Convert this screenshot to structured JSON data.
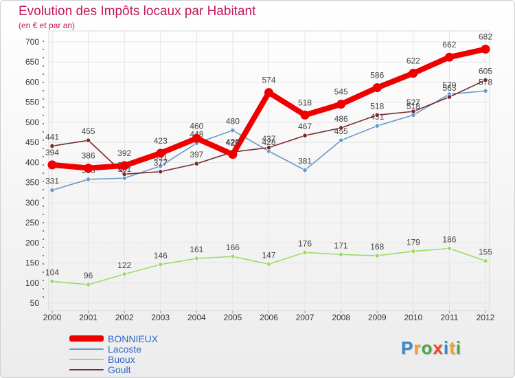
{
  "header": {
    "title": "Evolution des Impôts locaux par Habitant",
    "subtitle": "(en € et par an)"
  },
  "chart_data": {
    "type": "line",
    "title": "Evolution des Impôts locaux par Habitant",
    "subtitle": "(en € et par an)",
    "xlabel": "",
    "ylabel": "",
    "x": [
      "2000",
      "2001",
      "2002",
      "2003",
      "2004",
      "2005",
      "2006",
      "2007",
      "2008",
      "2009",
      "2010",
      "2011",
      "2012"
    ],
    "ylim": [
      50,
      700
    ],
    "yticks": [
      50,
      100,
      150,
      200,
      250,
      300,
      350,
      400,
      450,
      500,
      550,
      600,
      650,
      700
    ],
    "grid": true,
    "legend_position": "bottom-left",
    "series": [
      {
        "name": "BONNIEUX",
        "color": "#ee0000",
        "values": [
          394,
          386,
          392,
          423,
          460,
          420,
          574,
          518,
          545,
          586,
          622,
          662,
          682
        ]
      },
      {
        "name": "Lacoste",
        "color": "#6699cc",
        "values": [
          331,
          358,
          361,
          391,
          448,
          480,
          428,
          381,
          455,
          491,
          518,
          570,
          578
        ]
      },
      {
        "name": "Buoux",
        "color": "#99dd66",
        "values": [
          104,
          96,
          122,
          146,
          161,
          166,
          147,
          176,
          171,
          168,
          179,
          186,
          155
        ]
      },
      {
        "name": "Goult",
        "color": "#7a2a2a",
        "values": [
          441,
          455,
          371,
          377,
          397,
          426,
          437,
          467,
          486,
          518,
          527,
          563,
          605
        ]
      }
    ]
  },
  "legend": {
    "items": [
      {
        "label": "BONNIEUX",
        "color": "#ee0000"
      },
      {
        "label": "Lacoste",
        "color": "#6699cc"
      },
      {
        "label": "Buoux",
        "color": "#99dd66"
      },
      {
        "label": "Goult",
        "color": "#7a2a2a"
      }
    ]
  },
  "logo": {
    "letters": [
      "P",
      "r",
      "o",
      "x",
      "i",
      "t",
      "i"
    ],
    "colors": [
      "#3a86c8",
      "#f0a030",
      "#4aa84a",
      "#e84a2a",
      "#3a86c8",
      "#f0a030",
      "#4aa84a"
    ]
  }
}
